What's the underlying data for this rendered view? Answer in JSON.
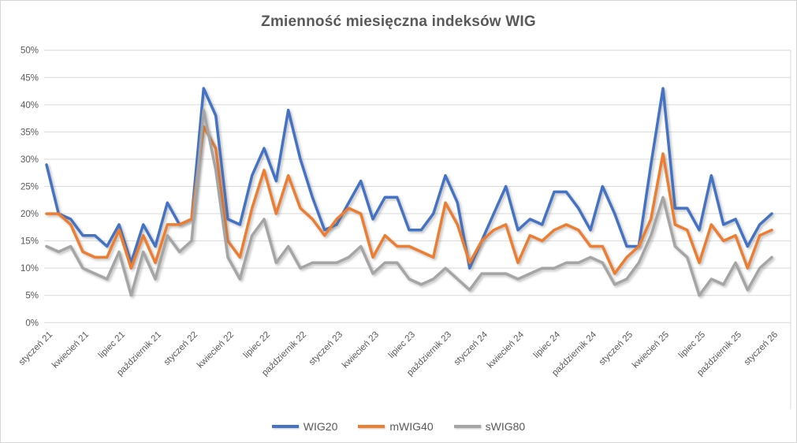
{
  "title": "Zmienność miesięczna indeksów WIG",
  "chart_data": {
    "type": "line",
    "title": "Zmienność miesięczna indeksów WIG",
    "xlabel": "",
    "ylabel": "",
    "ylim": [
      0,
      50
    ],
    "grid": true,
    "legend_position": "bottom",
    "y_tick_labels": [
      "0%",
      "5%",
      "10%",
      "15%",
      "20%",
      "25%",
      "30%",
      "35%",
      "40%",
      "45%",
      "50%"
    ],
    "x_tick_labels": [
      "styczeń 21",
      "kwiecień 21",
      "lipiec 21",
      "październik 21",
      "styczeń 22",
      "kwiecień 22",
      "lipiec 22",
      "październik 22",
      "styczeń 23",
      "kwiecień 23",
      "lipiec 23",
      "październik 23",
      "styczeń 24",
      "kwiecień 24",
      "lipiec 24",
      "październik 24",
      "styczeń 25",
      "kwiecień 25",
      "lipiec 25",
      "październik 25",
      "styczeń 26"
    ],
    "x_tick_every": 3,
    "series": [
      {
        "name": "WIG20",
        "color": "#4472C4",
        "values": [
          29,
          20,
          19,
          16,
          16,
          14,
          18,
          11,
          18,
          14,
          22,
          18,
          19,
          43,
          38,
          19,
          18,
          27,
          32,
          26,
          39,
          30,
          23,
          17,
          18,
          22,
          26,
          19,
          23,
          23,
          17,
          17,
          20,
          27,
          22,
          10,
          15,
          20,
          25,
          17,
          19,
          18,
          24,
          24,
          21,
          17,
          25,
          20,
          14,
          14,
          29,
          43,
          21,
          21,
          17,
          27,
          18,
          19,
          14,
          18,
          20
        ]
      },
      {
        "name": "mWIG40",
        "color": "#ED7D31",
        "values": [
          20,
          20,
          18,
          13,
          12,
          12,
          17,
          10,
          16,
          11,
          18,
          18,
          19,
          36,
          32,
          15,
          12,
          21,
          28,
          20,
          27,
          21,
          19,
          16,
          19,
          21,
          20,
          12,
          16,
          14,
          14,
          13,
          12,
          22,
          18,
          11,
          15,
          17,
          18,
          11,
          16,
          15,
          17,
          18,
          17,
          14,
          14,
          9,
          12,
          14,
          19,
          31,
          18,
          17,
          11,
          18,
          15,
          16,
          10,
          16,
          17
        ]
      },
      {
        "name": "sWIG80",
        "color": "#A5A5A5",
        "values": [
          14,
          13,
          14,
          10,
          9,
          8,
          13,
          5,
          13,
          8,
          16,
          13,
          15,
          39,
          28,
          12,
          8,
          16,
          19,
          11,
          14,
          10,
          11,
          11,
          11,
          12,
          14,
          9,
          11,
          11,
          8,
          7,
          8,
          10,
          8,
          6,
          9,
          9,
          9,
          8,
          9,
          10,
          10,
          11,
          11,
          12,
          11,
          7,
          8,
          11,
          16,
          23,
          14,
          12,
          5,
          8,
          7,
          11,
          6,
          10,
          12
        ]
      }
    ]
  }
}
